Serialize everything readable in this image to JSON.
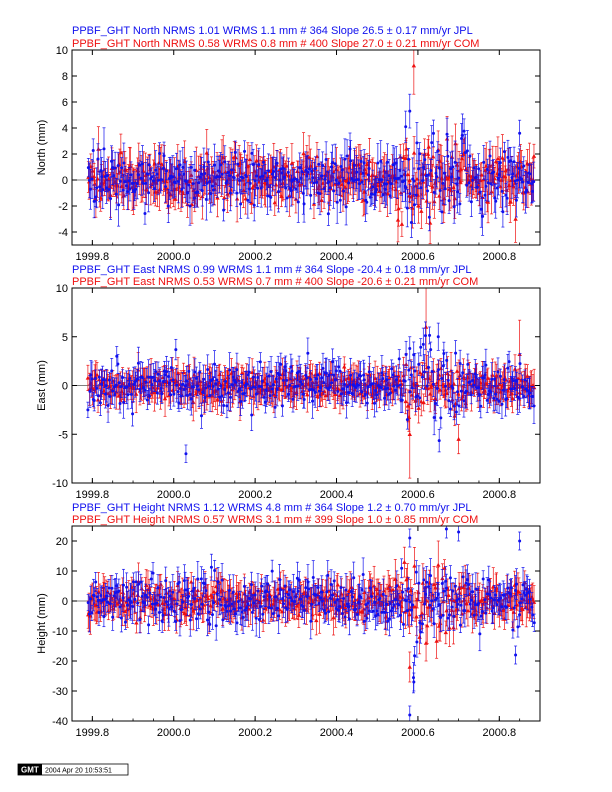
{
  "colors": {
    "jpl": "#1010ee",
    "com": "#ee1010",
    "axis": "#000000"
  },
  "stamp": {
    "logo": "GMT",
    "date": "2004 Apr 20 10:53:51"
  },
  "chart_data": [
    {
      "type": "scatter",
      "component": "North",
      "ylabel": "North (mm)",
      "xlim": [
        1999.75,
        2000.9
      ],
      "ylim": [
        -5,
        10
      ],
      "xticks": [
        "1999.8",
        "2000.0",
        "2000.2",
        "2000.4",
        "2000.6",
        "2000.8"
      ],
      "yticks": [
        "-4",
        "-2",
        "0",
        "2",
        "4",
        "6",
        "8",
        "10"
      ],
      "series": [
        {
          "name": "JPL",
          "header": "PPBF_GHT North NRMS 1.01 WRMS  1.1 mm # 364 Slope   26.5 ±  0.17 mm/yr JPL",
          "count": 364,
          "wrms": 1.1,
          "slope": 26.5,
          "slope_err": 0.17,
          "scatter_sd": 1.0,
          "typical_error": 1.1,
          "marker": "circle"
        },
        {
          "name": "COM",
          "header": "PPBF_GHT North NRMS 0.58 WRMS  0.8 mm # 400 Slope   27.0 ±  0.21 mm/yr COM",
          "count": 400,
          "wrms": 0.8,
          "slope": 27.0,
          "slope_err": 0.21,
          "scatter_sd": 0.8,
          "typical_error": 1.2,
          "marker": "triangle"
        }
      ],
      "notable_points": [
        {
          "series": "COM",
          "x": 2000.59,
          "y": 8.8,
          "err": 2.2
        },
        {
          "series": "JPL",
          "x": 2000.58,
          "y": 5.3,
          "err": 1.3
        },
        {
          "series": "JPL",
          "x": 2000.57,
          "y": 4.1,
          "err": 1.2
        },
        {
          "series": "JPL",
          "x": 2000.85,
          "y": 3.6,
          "err": 1.0
        },
        {
          "series": "COM",
          "x": 2000.63,
          "y": -3.3,
          "err": 1.6
        },
        {
          "series": "COM",
          "x": 2000.84,
          "y": -3.0,
          "err": 1.8
        },
        {
          "series": "JPL",
          "x": 2000.38,
          "y": -2.6,
          "err": 0.9
        }
      ]
    },
    {
      "type": "scatter",
      "component": "East",
      "ylabel": "East (mm)",
      "xlim": [
        1999.75,
        2000.9
      ],
      "ylim": [
        -10,
        10
      ],
      "xticks": [
        "1999.8",
        "2000.0",
        "2000.2",
        "2000.4",
        "2000.6",
        "2000.8"
      ],
      "yticks": [
        "-10",
        "-5",
        "0",
        "5",
        "10"
      ],
      "series": [
        {
          "name": "JPL",
          "header": "PPBF_GHT East NRMS 0.99 WRMS  1.1 mm # 364 Slope  -20.4 ±  0.18 mm/yr JPL",
          "count": 364,
          "wrms": 1.1,
          "slope": -20.4,
          "slope_err": 0.18,
          "scatter_sd": 1.1,
          "typical_error": 1.2,
          "marker": "circle"
        },
        {
          "name": "COM",
          "header": "PPBF_GHT East NRMS 0.53 WRMS  0.7 mm # 400 Slope  -20.6 ±  0.21 mm/yr COM",
          "count": 400,
          "wrms": 0.7,
          "slope": -20.6,
          "slope_err": 0.21,
          "scatter_sd": 0.7,
          "typical_error": 1.3,
          "marker": "triangle"
        }
      ],
      "notable_points": [
        {
          "series": "JPL",
          "x": 2000.03,
          "y": -7.0,
          "err": 0.9
        },
        {
          "series": "COM",
          "x": 2000.58,
          "y": -5.0,
          "err": 4.5
        },
        {
          "series": "COM",
          "x": 2000.62,
          "y": 6.0,
          "err": 4.0
        },
        {
          "series": "JPL",
          "x": 2000.65,
          "y": 5.0,
          "err": 1.4
        },
        {
          "series": "JPL",
          "x": 2000.58,
          "y": 3.8,
          "err": 1.2
        },
        {
          "series": "COM",
          "x": 2000.7,
          "y": -5.5,
          "err": 1.5
        },
        {
          "series": "COM",
          "x": 2000.85,
          "y": 3.2,
          "err": 3.5
        },
        {
          "series": "JPL",
          "x": 1999.86,
          "y": 3.0,
          "err": 1.0
        }
      ]
    },
    {
      "type": "scatter",
      "component": "Height",
      "ylabel": "Height (mm)",
      "xlim": [
        1999.75,
        2000.9
      ],
      "ylim": [
        -40,
        25
      ],
      "xticks": [
        "1999.8",
        "2000.0",
        "2000.2",
        "2000.4",
        "2000.6",
        "2000.8"
      ],
      "yticks": [
        "-40",
        "-30",
        "-20",
        "-10",
        "0",
        "10",
        "20"
      ],
      "series": [
        {
          "name": "JPL",
          "header": "PPBF_GHT Height NRMS 1.12 WRMS  4.8 mm # 364 Slope    1.2 ±  0.70 mm/yr JPL",
          "count": 364,
          "wrms": 4.8,
          "slope": 1.2,
          "slope_err": 0.7,
          "scatter_sd": 4.0,
          "typical_error": 4.0,
          "marker": "circle"
        },
        {
          "name": "COM",
          "header": "PPBF_GHT Height NRMS 0.57 WRMS  3.1 mm # 399 Slope    1.0 ±  0.85 mm/yr COM",
          "count": 399,
          "wrms": 3.1,
          "slope": 1.0,
          "slope_err": 0.85,
          "scatter_sd": 2.8,
          "typical_error": 4.5,
          "marker": "triangle"
        }
      ],
      "notable_points": [
        {
          "series": "JPL",
          "x": 2000.58,
          "y": -38.0,
          "err": 3.0
        },
        {
          "series": "JPL",
          "x": 2000.59,
          "y": -27.0,
          "err": 3.0
        },
        {
          "series": "JPL",
          "x": 2000.58,
          "y": 21.0,
          "err": 3.0
        },
        {
          "series": "JPL",
          "x": 2000.67,
          "y": 24.0,
          "err": 3.0
        },
        {
          "series": "JPL",
          "x": 2000.7,
          "y": 23.0,
          "err": 3.0
        },
        {
          "series": "JPL",
          "x": 2000.85,
          "y": 20.0,
          "err": 3.0
        },
        {
          "series": "COM",
          "x": 2000.62,
          "y": -14.0,
          "err": 6.0
        },
        {
          "series": "COM",
          "x": 2000.58,
          "y": -22.0,
          "err": 5.0
        },
        {
          "series": "JPL",
          "x": 2000.84,
          "y": -18.0,
          "err": 3.0
        },
        {
          "series": "COM",
          "x": 2000.65,
          "y": 12.0,
          "err": 8.0
        }
      ]
    }
  ]
}
